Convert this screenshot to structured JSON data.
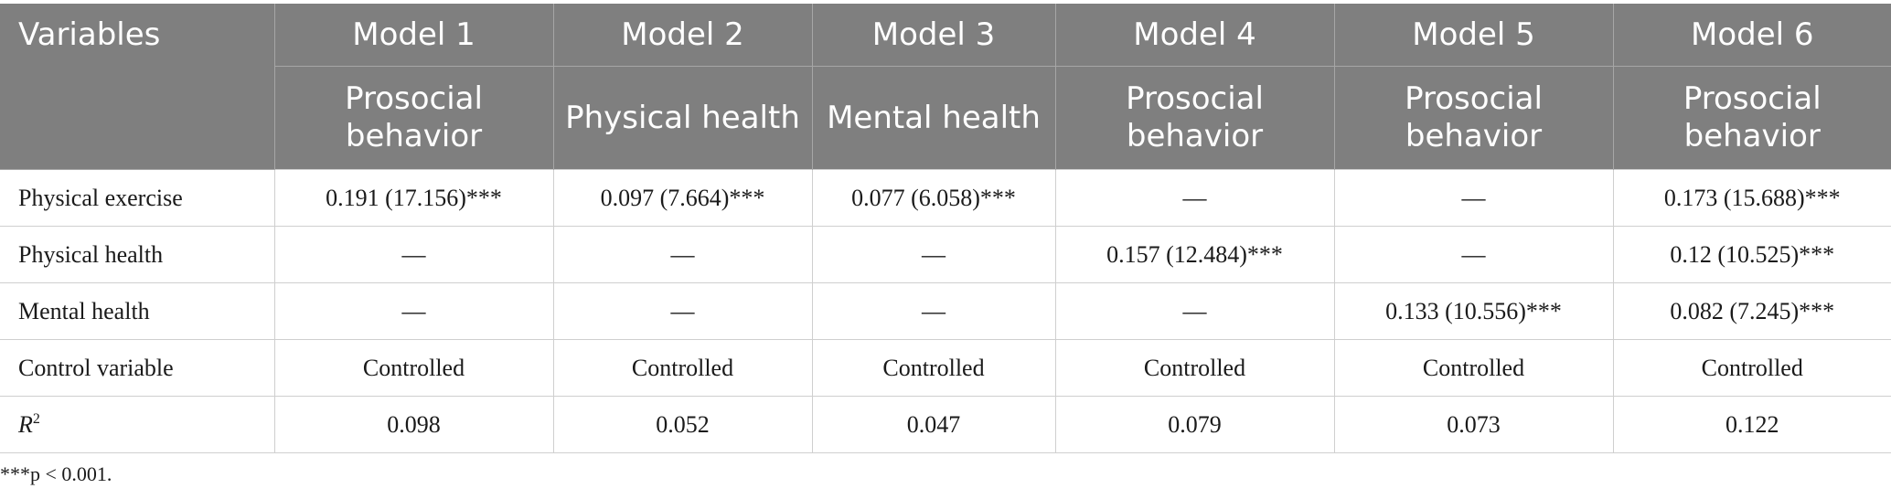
{
  "header": {
    "variables_label": "Variables",
    "models": [
      {
        "label": "Model 1",
        "dependent": "Prosocial behavior"
      },
      {
        "label": "Model 2",
        "dependent": "Physical health"
      },
      {
        "label": "Model 3",
        "dependent": "Mental health"
      },
      {
        "label": "Model 4",
        "dependent": "Prosocial behavior"
      },
      {
        "label": "Model 5",
        "dependent": "Prosocial behavior"
      },
      {
        "label": "Model 6",
        "dependent": "Prosocial behavior"
      }
    ]
  },
  "rows": [
    {
      "variable": "Physical exercise",
      "cells": [
        "0.191 (17.156)***",
        "0.097 (7.664)***",
        "0.077 (6.058)***",
        "—",
        "—",
        "0.173 (15.688)***"
      ]
    },
    {
      "variable": "Physical health",
      "cells": [
        "—",
        "—",
        "—",
        "0.157 (12.484)***",
        "—",
        "0.12 (10.525)***"
      ]
    },
    {
      "variable": "Mental health",
      "cells": [
        "—",
        "—",
        "—",
        "—",
        "0.133 (10.556)***",
        "0.082 (7.245)***"
      ]
    },
    {
      "variable": "Control variable",
      "cells": [
        "Controlled",
        "Controlled",
        "Controlled",
        "Controlled",
        "Controlled",
        "Controlled"
      ]
    }
  ],
  "r2_row": {
    "label_main": "R",
    "label_sup": "2",
    "cells": [
      "0.098",
      "0.052",
      "0.047",
      "0.079",
      "0.073",
      "0.122"
    ]
  },
  "footnote": "***p < 0.001."
}
